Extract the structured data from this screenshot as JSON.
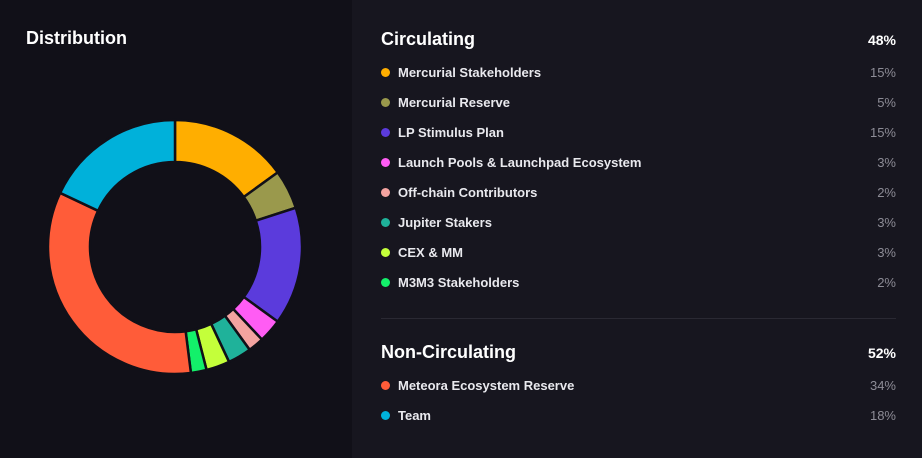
{
  "chart_data": {
    "type": "pie",
    "title": "Distribution",
    "sections": [
      {
        "name": "Circulating",
        "total": "48%",
        "items": [
          {
            "label": "Mercurial Stakeholders",
            "value": 15,
            "display": "15%",
            "color": "#FFAE00"
          },
          {
            "label": "Mercurial Reserve",
            "value": 5,
            "display": "5%",
            "color": "#9A994C"
          },
          {
            "label": "LP Stimulus Plan",
            "value": 15,
            "display": "15%",
            "color": "#5B3BDC"
          },
          {
            "label": "Launch Pools & Launchpad Ecosystem",
            "value": 3,
            "display": "3%",
            "color": "#FF5CF4"
          },
          {
            "label": "Off-chain Contributors",
            "value": 2,
            "display": "2%",
            "color": "#F4A3A0"
          },
          {
            "label": "Jupiter Stakers",
            "value": 3,
            "display": "3%",
            "color": "#1FB29A"
          },
          {
            "label": "CEX & MM",
            "value": 3,
            "display": "3%",
            "color": "#C4FF3A"
          },
          {
            "label": "M3M3 Stakeholders",
            "value": 2,
            "display": "2%",
            "color": "#13F06A"
          }
        ]
      },
      {
        "name": "Non-Circulating",
        "total": "52%",
        "items": [
          {
            "label": "Meteora Ecosystem Reserve",
            "value": 34,
            "display": "34%",
            "color": "#FF5C39"
          },
          {
            "label": "Team",
            "value": 18,
            "display": "18%",
            "color": "#00B1DA"
          }
        ]
      }
    ]
  }
}
